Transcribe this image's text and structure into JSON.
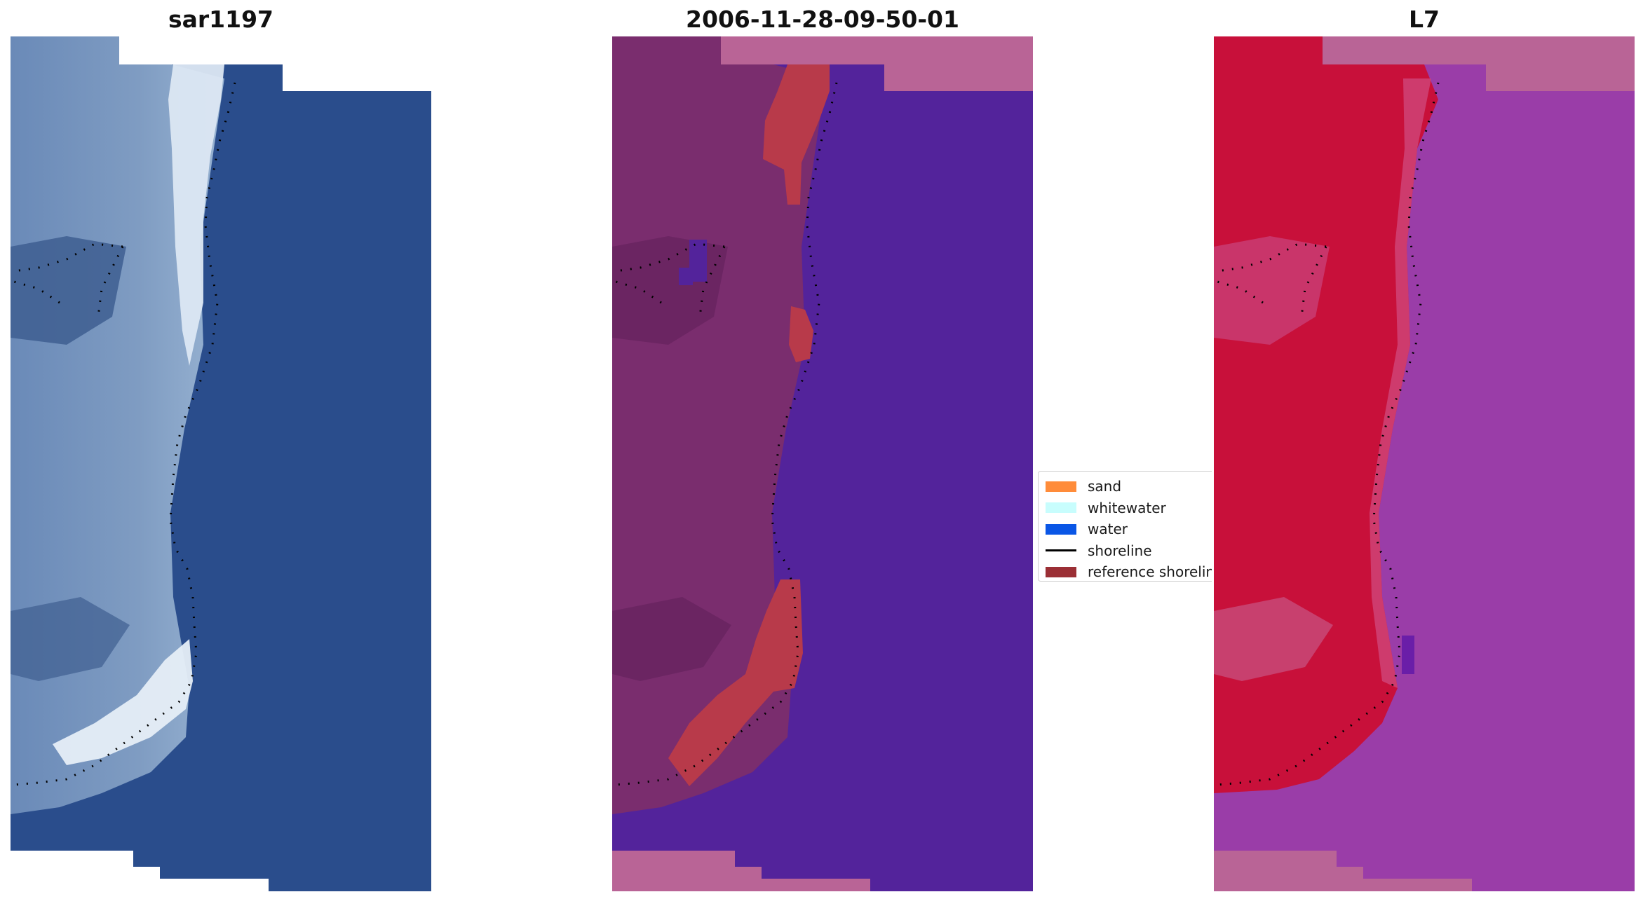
{
  "panels": [
    {
      "title": "sar1197",
      "layer": "rgb"
    },
    {
      "title": "2006-11-28-09-50-01",
      "layer": "classification"
    },
    {
      "title": "L7",
      "layer": "index"
    }
  ],
  "legend": {
    "items": [
      {
        "label": "sand",
        "color": "#ff8c3a",
        "kind": "patch"
      },
      {
        "label": "whitewater",
        "color": "#c8fdfd",
        "kind": "patch"
      },
      {
        "label": "water",
        "color": "#0a56e6",
        "kind": "patch"
      },
      {
        "label": "shoreline",
        "color": "#000000",
        "kind": "line"
      },
      {
        "label": "reference shoreline",
        "color": "#9b2f35",
        "kind": "patch"
      }
    ]
  },
  "colors": {
    "rgb_water": "#2a4d8c",
    "rgb_land": "#5f7fae",
    "rgb_whitewater": "#e9f0f7",
    "class_water": "#53239b",
    "class_land": "#7a2d6e",
    "class_sand_overlay": "#b83a4a",
    "class_nodata": "#b96496",
    "index_land": "#c8103a",
    "index_water": "#9a3da8",
    "index_nodata": "#b96496"
  }
}
